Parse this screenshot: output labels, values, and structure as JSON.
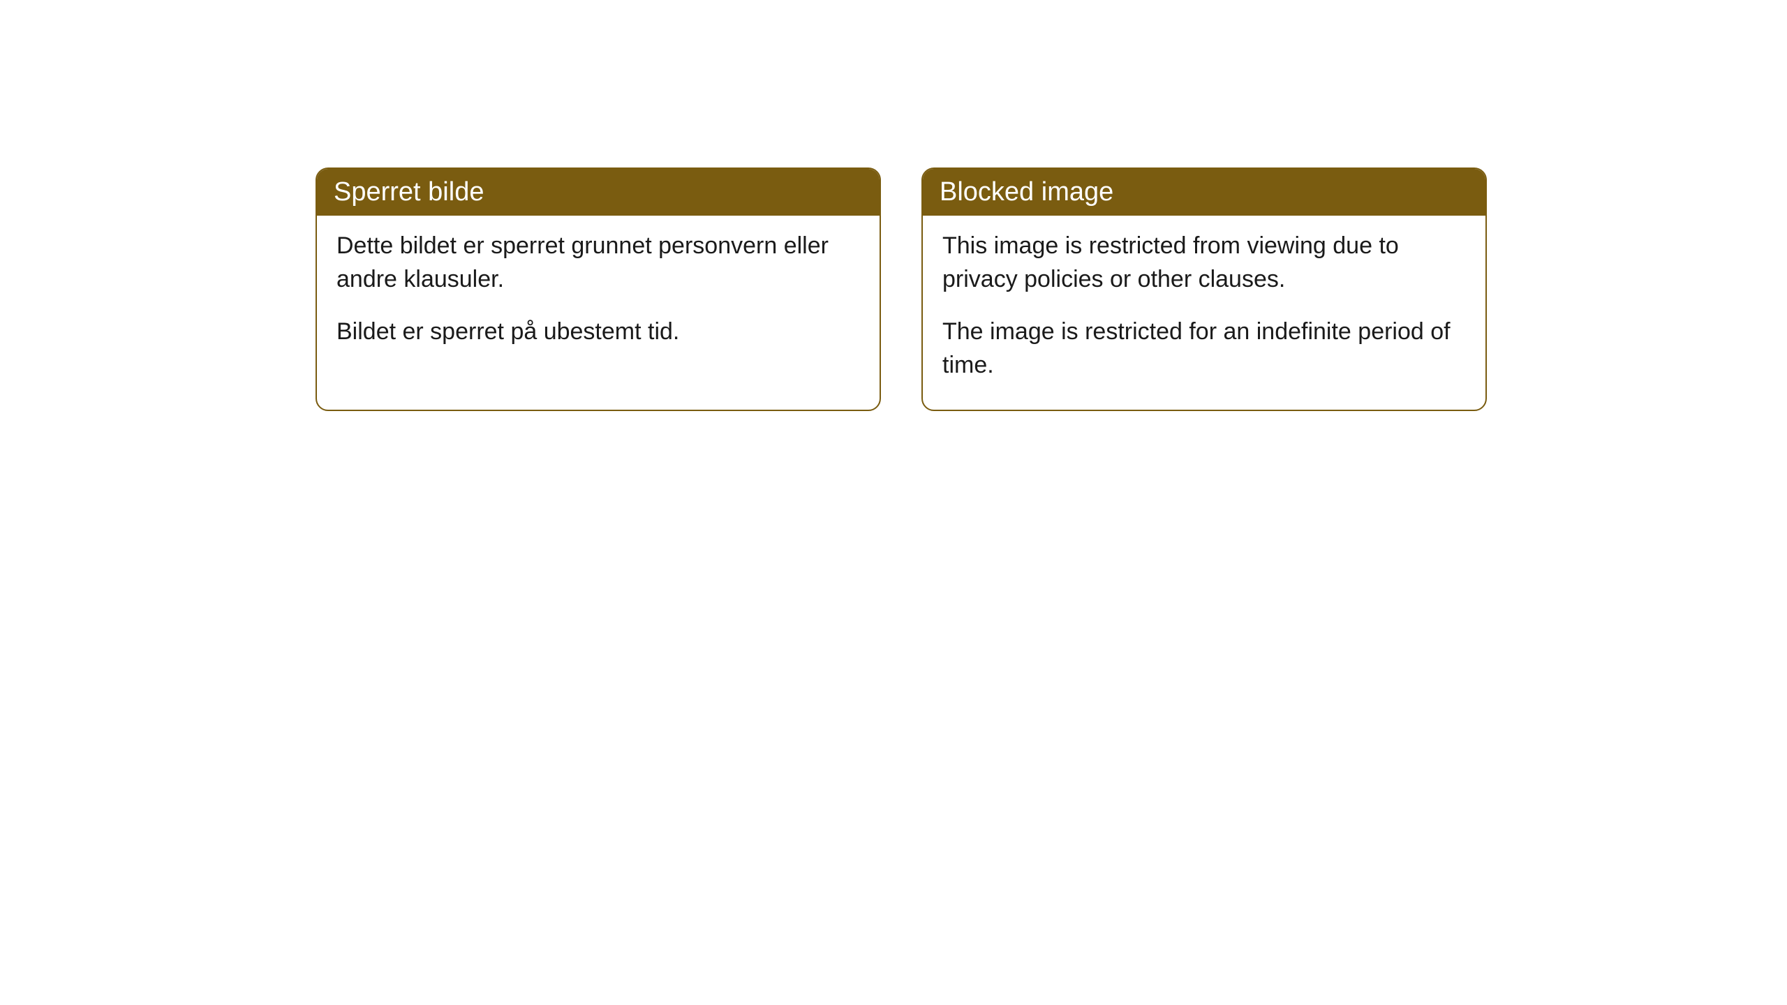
{
  "cards": [
    {
      "title": "Sperret bilde",
      "paragraph1": "Dette bildet er sperret grunnet personvern eller andre klausuler.",
      "paragraph2": "Bildet er sperret på ubestemt tid."
    },
    {
      "title": "Blocked image",
      "paragraph1": "This image is restricted from viewing due to privacy policies or other clauses.",
      "paragraph2": "The image is restricted for an indefinite period of time."
    }
  ],
  "style": {
    "header_background": "#7a5c10",
    "header_text_color": "#ffffff",
    "border_color": "#7a5c10",
    "body_text_color": "#1a1a1a",
    "body_background": "#ffffff",
    "border_radius": 18,
    "title_fontsize": 38,
    "body_fontsize": 34
  }
}
